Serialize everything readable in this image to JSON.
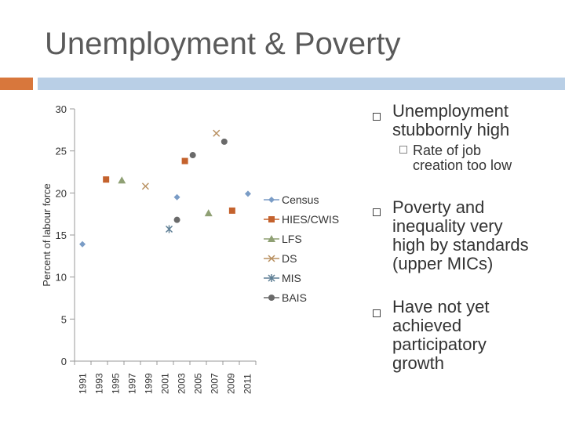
{
  "slide": {
    "title": "Unemployment & Poverty"
  },
  "bullets": [
    {
      "text": "Unemployment stubbornly high",
      "sub": "Rate of job creation too low"
    },
    {
      "text": "Poverty and inequality very high by standards (upper MICs)"
    },
    {
      "text": "Have not yet achieved participatory growth"
    }
  ],
  "colors": {
    "accent_orange": "#d8773c",
    "accent_blue": "#b9cfe6"
  },
  "chart_data": {
    "type": "scatter",
    "ylabel": "Percent of labour force",
    "ylim": [
      0,
      30
    ],
    "yticks": [
      0,
      5,
      10,
      15,
      20,
      25,
      30
    ],
    "xticks": [
      "1991",
      "1993",
      "1995",
      "1997",
      "1999",
      "2001",
      "2003",
      "2005",
      "2007",
      "2009",
      "2011"
    ],
    "xlim": [
      1991,
      2011
    ],
    "grid": false,
    "legend_position": "right",
    "series": [
      {
        "name": "Census",
        "color": "#7a9cc6",
        "marker": "diamond",
        "points": [
          [
            1990,
            13.9
          ],
          [
            2002,
            19.5
          ],
          [
            2011,
            19.9
          ]
        ]
      },
      {
        "name": "HIES/CWIS",
        "color": "#c4622d",
        "marker": "square",
        "points": [
          [
            1993,
            21.6
          ],
          [
            2003,
            23.8
          ],
          [
            2009,
            17.9
          ]
        ]
      },
      {
        "name": "LFS",
        "color": "#8fa074",
        "marker": "triangle",
        "points": [
          [
            1995,
            21.5
          ],
          [
            2006,
            17.6
          ]
        ]
      },
      {
        "name": "DS",
        "color": "#b89060",
        "marker": "x",
        "points": [
          [
            1998,
            20.8
          ],
          [
            2007,
            27.1
          ]
        ]
      },
      {
        "name": "MIS",
        "color": "#5f7f95",
        "marker": "star",
        "points": [
          [
            2001,
            15.7
          ]
        ]
      },
      {
        "name": "BAIS",
        "color": "#6a6a6a",
        "marker": "circle",
        "points": [
          [
            2002,
            16.8
          ],
          [
            2004,
            24.5
          ],
          [
            2008,
            26.1
          ]
        ]
      }
    ]
  }
}
